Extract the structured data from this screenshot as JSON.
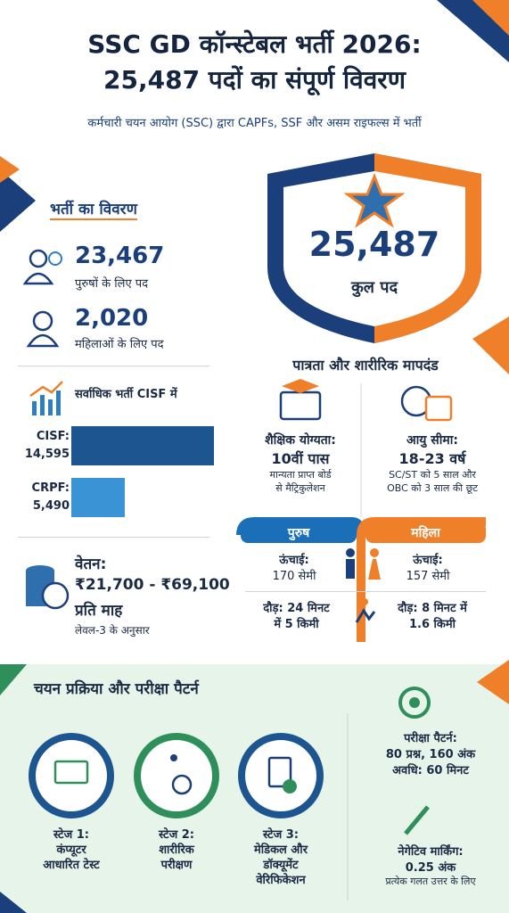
{
  "header": {
    "title": [
      "SSC GD कॉन्स्टेबल भर्ती 2026:",
      "25,487 पदों का संपूर्ण विवरण"
    ],
    "subtitle": "कर्मचारी चयन आयोग (SSC) द्वारा CAPFs, SSF और असम राइफल्स में भर्ती"
  },
  "recruitment": {
    "heading": "भर्ती का विवरण",
    "men": {
      "count": "23,467",
      "label": "पुरुषों के लिए पद"
    },
    "women": {
      "count": "2,020",
      "label": "महिलाओं के लिए पद"
    }
  },
  "total": {
    "count": "25,487",
    "label": "कुल पद"
  },
  "force_chart": {
    "title": "सर्वाधिक भर्ती CISF में",
    "bars": [
      {
        "name": "CISF:",
        "value": 14595,
        "label": "14,595",
        "color": "#1d5591"
      },
      {
        "name": "CRPF:",
        "value": 5490,
        "label": "5,490",
        "color": "#3a93d4"
      }
    ]
  },
  "salary": {
    "heading": "वेतन:",
    "range": "₹21,700 - ₹69,100",
    "period": "प्रति माह",
    "note": "लेवल-3 के अनुसार"
  },
  "eligibility": {
    "heading": "पात्रता और शारीरिक मापदंड",
    "education": {
      "label": "शैक्षिक योग्यता:",
      "value": "10वीं पास",
      "note": [
        "मान्यता प्राप्त बोर्ड",
        "से मैट्रिकुलेशन"
      ]
    },
    "age": {
      "label": "आयु सीमा:",
      "value": "18-23 वर्ष",
      "note": [
        "SC/ST को 5 साल और",
        "OBC को 3 साल की छूट"
      ]
    },
    "male": {
      "tab": "पुरुष",
      "height_label": "ऊंचाई:",
      "height": "170 सेमी",
      "run": [
        "दौड़: 24 मिनट",
        "में 5 किमी"
      ]
    },
    "female": {
      "tab": "महिला",
      "height_label": "ऊंचाई:",
      "height": "157 सेमी",
      "run": [
        "दौड़: 8 मिनट में",
        "1.6 किमी"
      ]
    }
  },
  "selection": {
    "heading": "चयन प्रक्रिया और परीक्षा पैटर्न",
    "stages": [
      [
        "स्टेज 1:",
        "कंप्यूटर",
        "आधारित टेस्ट"
      ],
      [
        "स्टेज 2:",
        "शारीरिक",
        "परीक्षण"
      ],
      [
        "स्टेज 3:",
        "मेडिकल और",
        "डॉक्यूमेंट",
        "वेरिफिकेशन"
      ]
    ],
    "exam": [
      "परीक्षा पैटर्न:",
      "80 प्रश्न, 160 अंक",
      "अवधि: 60 मिनट"
    ],
    "negative": [
      "नेगेटिव मार्किंग:",
      "0.25 अंक",
      "प्रत्येक गलत उत्तर के लिए"
    ]
  }
}
